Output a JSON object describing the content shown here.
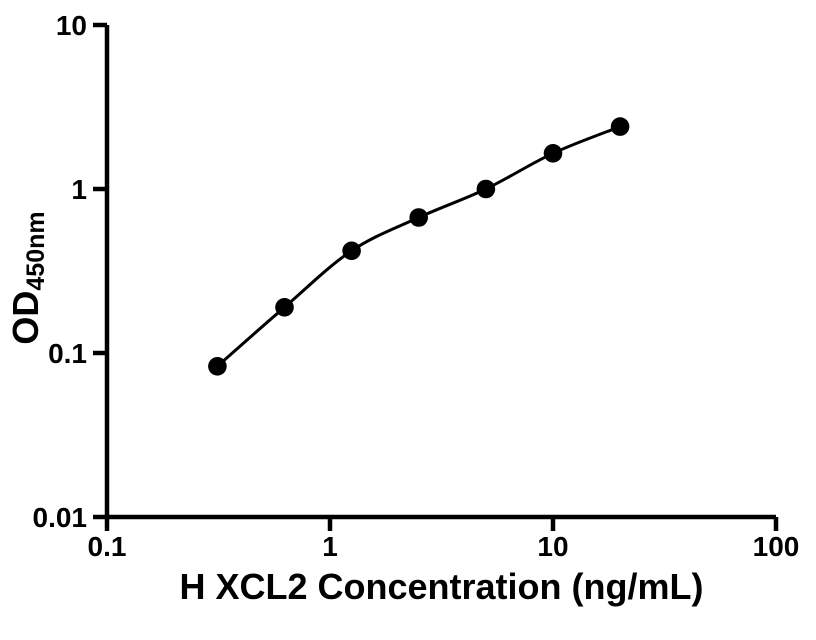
{
  "chart_data": {
    "type": "scatter",
    "title": "",
    "xlabel": "H XCL2 Concentration (ng/mL)",
    "ylabel_main": "OD",
    "ylabel_sub": "450nm",
    "xscale": "log",
    "yscale": "log",
    "xlim": [
      0.1,
      100
    ],
    "ylim": [
      0.01,
      10
    ],
    "x": [
      0.3125,
      0.625,
      1.25,
      2.5,
      5,
      10,
      20
    ],
    "y": [
      0.083,
      0.19,
      0.42,
      0.67,
      1.0,
      1.65,
      2.4
    ],
    "x_tick_values": [
      0.1,
      1,
      10,
      100
    ],
    "x_tick_labels": [
      "0.1",
      "1",
      "10",
      "100"
    ],
    "y_tick_values": [
      0.01,
      0.1,
      1,
      10
    ],
    "y_tick_labels": [
      "0.01",
      "0.1",
      "1",
      "10"
    ],
    "fit_curve": true,
    "grid": false,
    "legend": false,
    "marker_color": "#000000",
    "line_color": "#000000",
    "axis_color": "#000000",
    "background_color": "#ffffff"
  }
}
